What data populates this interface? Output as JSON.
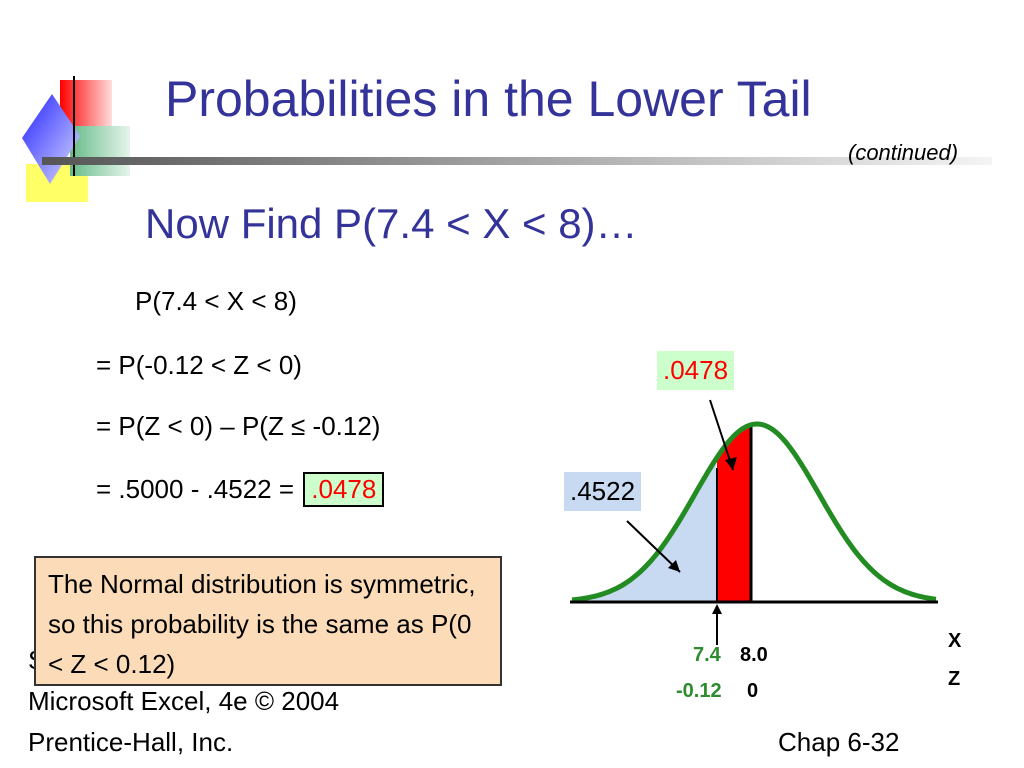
{
  "slide": {
    "title": "Probabilities in the Lower Tail",
    "continued": "(continued)",
    "subtitle": "Now Find P(7.4 < X < 8)…"
  },
  "equations": {
    "line1": "P(7.4 < X < 8)",
    "line2": "= P(-0.12 < Z < 0)",
    "line3": "= P(Z < 0) – P(Z ≤ -0.12)",
    "line4_prefix": "= .5000 - .4522 = ",
    "line4_answer": ".0478"
  },
  "note": {
    "text": "The Normal distribution is symmetric, so this probability is the same as P(0 < Z < 0.12)"
  },
  "footer": {
    "source_partial": "S",
    "line1": "Microsoft Excel, 4e © 2004",
    "line2": "Prentice-Hall, Inc.",
    "chapter": "Chap 6-32"
  },
  "diagram": {
    "shaded_middle_label": ".0478",
    "lower_tail_label": ".4522",
    "x_values": [
      "7.4",
      "8.0"
    ],
    "z_values": [
      "-0.12",
      "0"
    ],
    "axis_x_label": "X",
    "axis_z_label": "Z",
    "colors": {
      "curve": "#228b22",
      "lower_tail_fill": "#c8daf2",
      "middle_fill": "#ff0000",
      "title": "#333399",
      "note_bg": "#fcdcb8"
    }
  }
}
